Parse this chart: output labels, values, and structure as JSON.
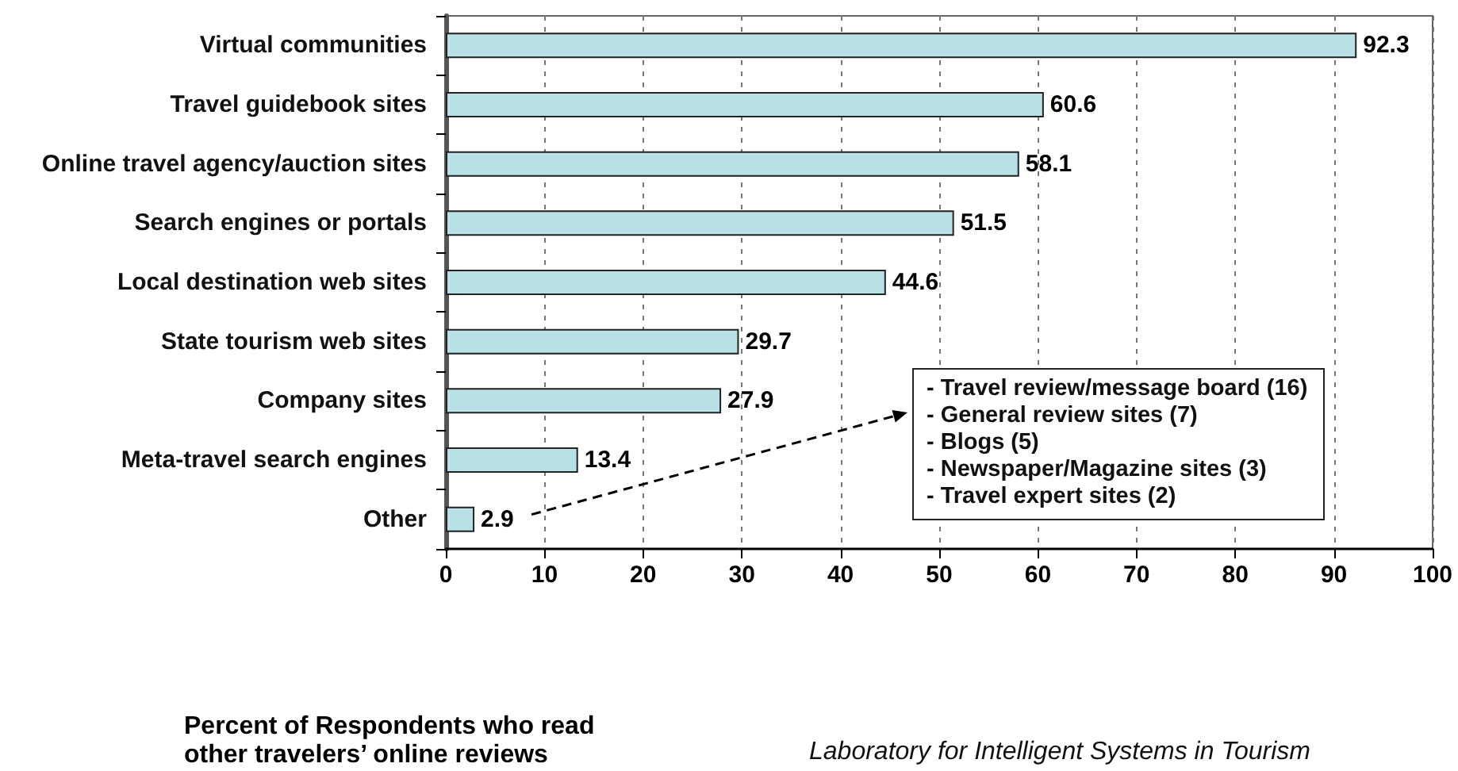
{
  "chart_data": {
    "type": "bar",
    "orientation": "horizontal",
    "title": "Percent of Respondents who read other travelers’ online reviews",
    "categories": [
      "Virtual communities",
      "Travel guidebook sites",
      "Online travel agency/auction sites",
      "Search engines or portals",
      "Local destination web sites",
      "State tourism web sites",
      "Company sites",
      "Meta-travel search engines",
      "Other"
    ],
    "values": [
      92.3,
      60.6,
      58.1,
      51.5,
      44.6,
      29.7,
      27.9,
      13.4,
      2.9
    ],
    "color": "#b9e1e5",
    "xlim": [
      0,
      100
    ],
    "xticks": [
      0,
      10,
      20,
      30,
      40,
      50,
      60,
      70,
      80,
      90,
      100
    ],
    "grid": "x",
    "data_labels": true,
    "annotations": [
      "- Travel review/message board (16)",
      "- General review sites (7)",
      "- Blogs (5)",
      "- Newspaper/Magazine sites (3)",
      "- Travel expert sites (2)",
      "Laboratory for Intelligent Systems in Tourism"
    ]
  }
}
